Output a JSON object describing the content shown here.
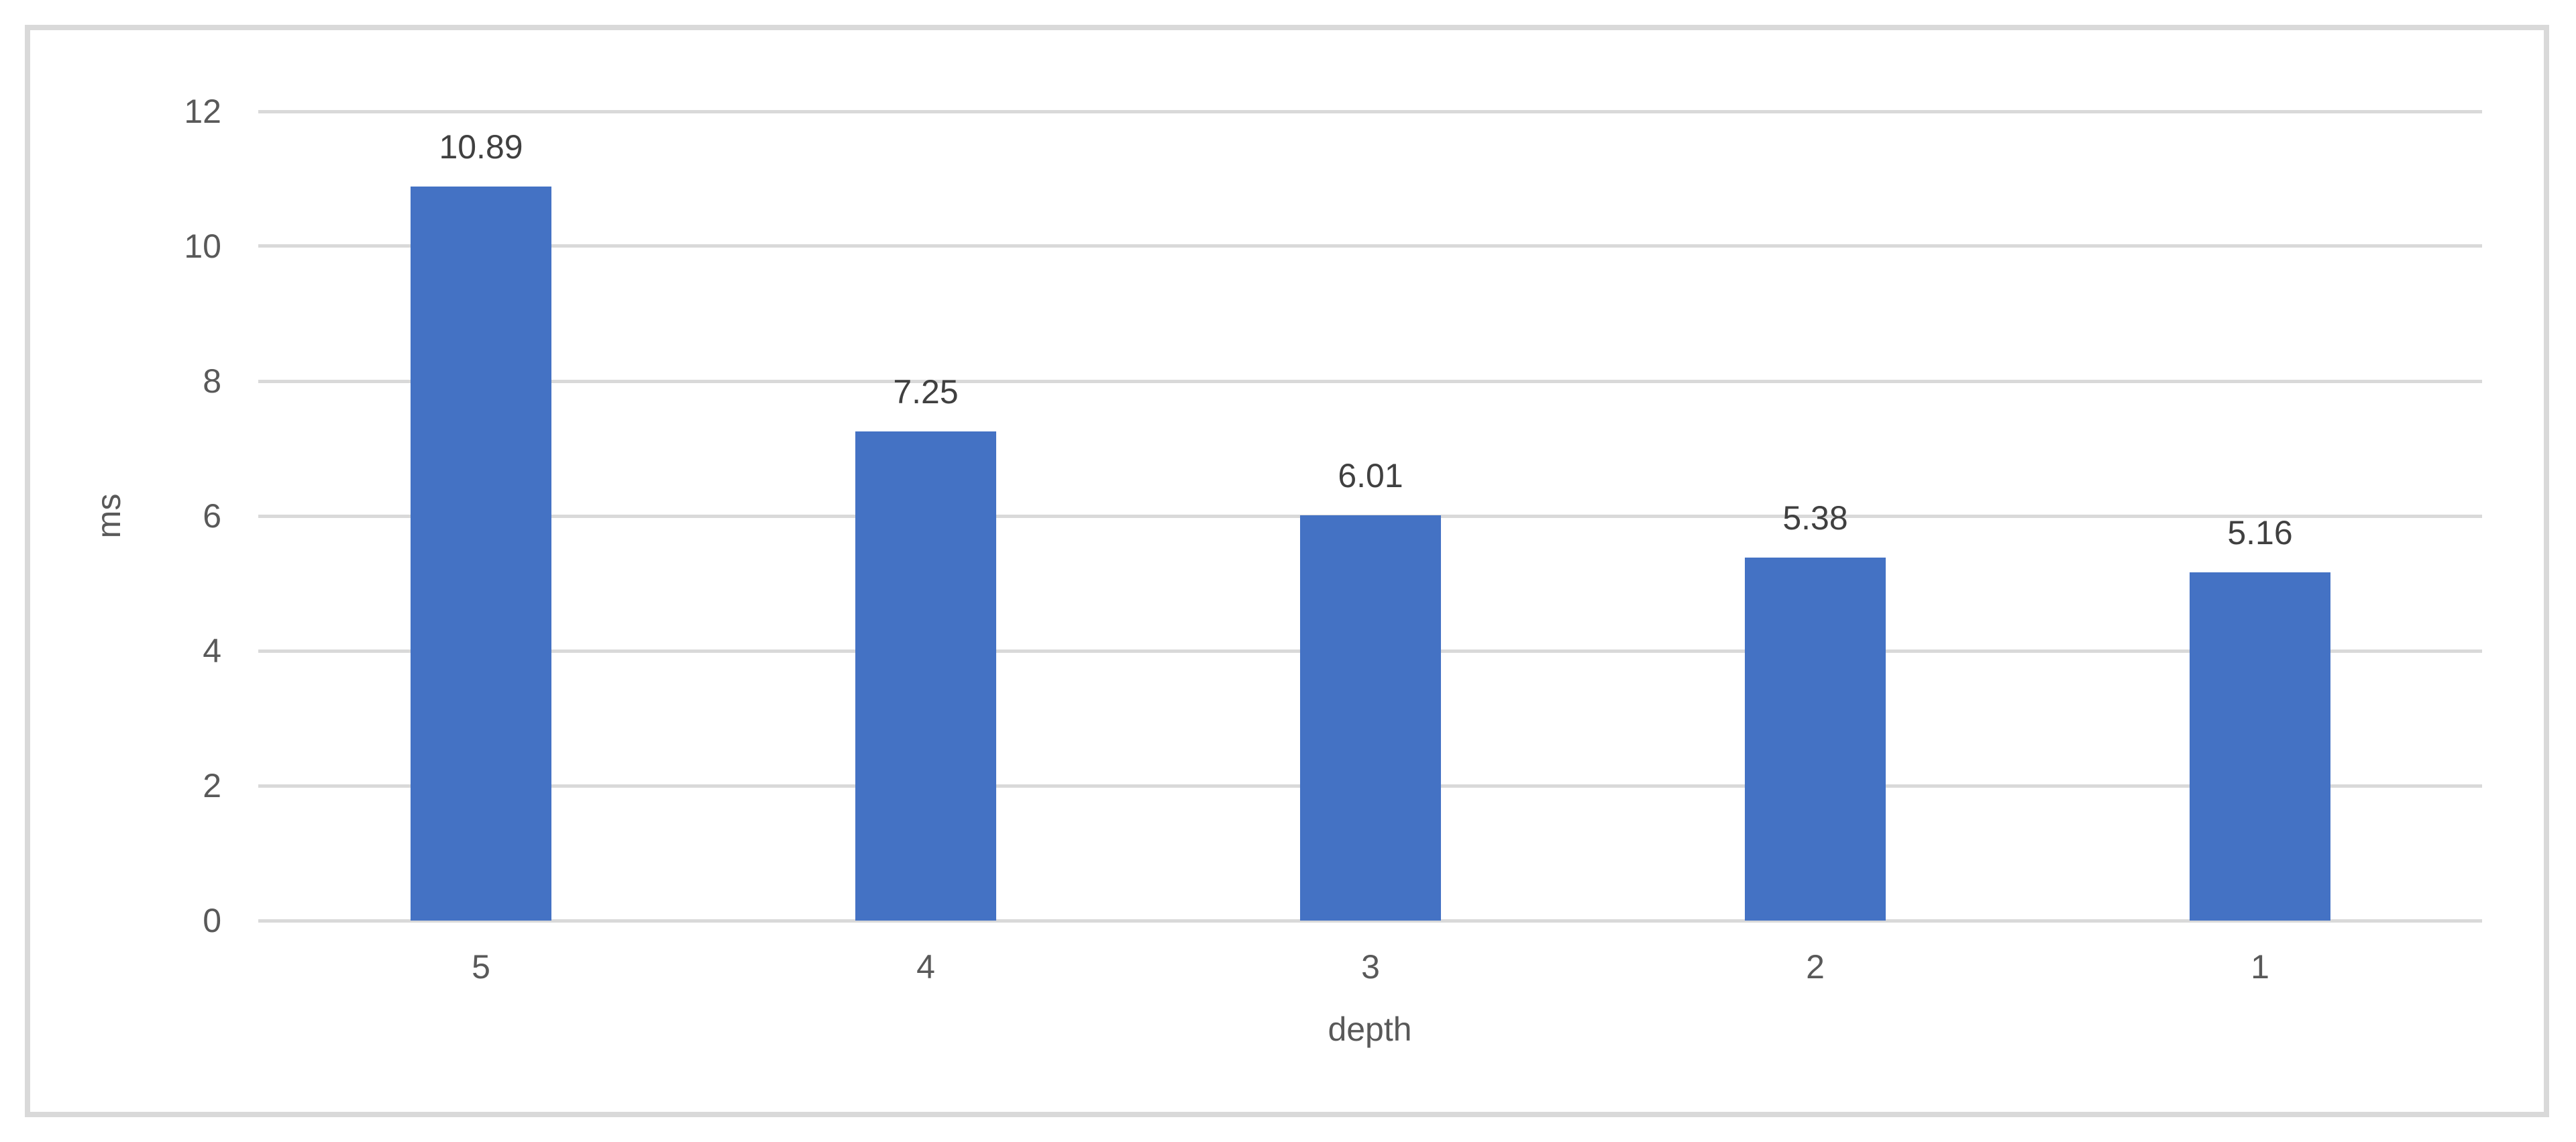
{
  "chart_data": {
    "type": "bar",
    "title": "",
    "categories": [
      "5",
      "4",
      "3",
      "2",
      "1"
    ],
    "values": [
      10.89,
      7.25,
      6.01,
      5.38,
      5.16
    ],
    "data_labels": [
      "10.89",
      "7.25",
      "6.01",
      "5.38",
      "5.16"
    ],
    "xlabel": "depth",
    "ylabel": "ms",
    "ylim": [
      0,
      12
    ],
    "yticks": [
      0,
      2,
      4,
      6,
      8,
      10,
      12
    ],
    "grid": "horizontal-only",
    "legend": "none",
    "bar_color": "#4472C4",
    "gridline_color": "#D9D9D9",
    "frame_color": "#D9D9D9",
    "axis_text_color": "#595959",
    "data_label_color": "#404040"
  }
}
